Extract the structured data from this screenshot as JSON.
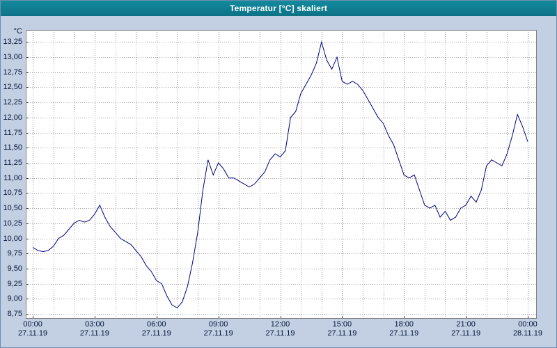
{
  "window": {
    "title": "Temperatur [°C] skaliert"
  },
  "chart_data": {
    "type": "line",
    "title": "Temperatur [°C] skaliert",
    "xlabel": "",
    "ylabel": "°C",
    "ylim": [
      8.75,
      13.25
    ],
    "y_tick_step": 0.25,
    "grid": "dotted",
    "legend": "none",
    "line_color": "#000080",
    "colors": {
      "grid": "#a3a3a3",
      "grid_major": "#8c8c8c",
      "axis": "#3c3c3c",
      "border": "#808080",
      "plot_background": "#ffffff",
      "window_background": "#c3d0e4",
      "titlebar": "#0e7f91",
      "title_text": "#ffffff",
      "label_text": "#001233"
    },
    "y_ticks": {
      "values": [
        13.25,
        13.0,
        12.75,
        12.5,
        12.25,
        12.0,
        11.75,
        11.5,
        11.25,
        11.0,
        10.75,
        10.5,
        10.25,
        10.0,
        9.75,
        9.5,
        9.25,
        9.0,
        8.75
      ],
      "labels": [
        "13,25",
        "13,00",
        "12,75",
        "12,50",
        "12,25",
        "12,00",
        "11,75",
        "11,50",
        "11,25",
        "11,00",
        "10,75",
        "10,50",
        "10,25",
        "10,00",
        "9,75",
        "9,50",
        "9,25",
        "9,00",
        "8,75"
      ]
    },
    "x_ticks": [
      {
        "hour": 0,
        "time": "00:00",
        "date": "27.11.19"
      },
      {
        "hour": 3,
        "time": "03:00",
        "date": "27.11.19"
      },
      {
        "hour": 6,
        "time": "06:00",
        "date": "27.11.19"
      },
      {
        "hour": 9,
        "time": "09:00",
        "date": "27.11.19"
      },
      {
        "hour": 12,
        "time": "12:00",
        "date": "27.11.19"
      },
      {
        "hour": 15,
        "time": "15:00",
        "date": "27.11.19"
      },
      {
        "hour": 18,
        "time": "18:00",
        "date": "27.11.19"
      },
      {
        "hour": 21,
        "time": "21:00",
        "date": "27.11.19"
      },
      {
        "hour": 24,
        "time": "00:00",
        "date": "28.11.19"
      }
    ],
    "x_start_hour": 0,
    "x_step_hours": 0.25,
    "values": [
      9.85,
      9.8,
      9.78,
      9.8,
      9.87,
      10.0,
      10.05,
      10.15,
      10.25,
      10.3,
      10.27,
      10.3,
      10.4,
      10.55,
      10.35,
      10.2,
      10.1,
      10.0,
      9.95,
      9.9,
      9.8,
      9.7,
      9.55,
      9.45,
      9.3,
      9.25,
      9.05,
      8.9,
      8.85,
      8.95,
      9.2,
      9.6,
      10.1,
      10.8,
      11.3,
      11.05,
      11.25,
      11.15,
      11.0,
      11.0,
      10.95,
      10.9,
      10.85,
      10.9,
      11.0,
      11.1,
      11.3,
      11.4,
      11.35,
      11.45,
      12.0,
      12.1,
      12.4,
      12.55,
      12.7,
      12.9,
      13.25,
      12.95,
      12.8,
      13.0,
      12.6,
      12.55,
      12.6,
      12.55,
      12.45,
      12.3,
      12.15,
      12.0,
      11.9,
      11.7,
      11.55,
      11.3,
      11.05,
      11.0,
      11.05,
      10.8,
      10.55,
      10.5,
      10.55,
      10.35,
      10.45,
      10.3,
      10.35,
      10.5,
      10.55,
      10.7,
      10.6,
      10.8,
      11.2,
      11.3,
      11.25,
      11.2,
      11.4,
      11.7,
      12.05,
      11.85,
      11.6
    ]
  }
}
